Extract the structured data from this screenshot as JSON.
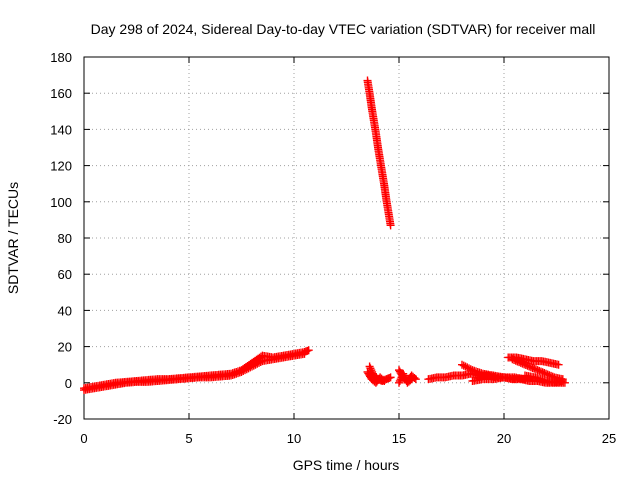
{
  "chart_data": {
    "type": "scatter",
    "title": "Day 298 of 2024, Sidereal Day-to-day VTEC variation (SDTVAR) for receiver mall",
    "xlabel": "GPS time / hours",
    "ylabel": "SDTVAR / TECUs",
    "xlim": [
      0,
      25
    ],
    "ylim": [
      -20,
      180
    ],
    "xticks": [
      0,
      5,
      10,
      15,
      20,
      25
    ],
    "xtick_labels": [
      "0",
      "5",
      "10",
      "15",
      "20",
      "25"
    ],
    "yticks": [
      -20,
      0,
      20,
      40,
      60,
      80,
      100,
      120,
      140,
      160,
      180
    ],
    "ytick_labels": [
      "-20",
      "0",
      "20",
      "40",
      "60",
      "80",
      "100",
      "120",
      "140",
      "160",
      "180"
    ],
    "grid": true,
    "marker": "+",
    "color": "#ff0000",
    "segments": [
      {
        "x": [
          0.0,
          0.5,
          1.0,
          1.5,
          2.0,
          2.5,
          3.0,
          3.5,
          4.0,
          4.5,
          5.0,
          5.5,
          6.0,
          6.5,
          7.0,
          7.5,
          8.0,
          8.5,
          9.0,
          9.5,
          10.0,
          10.5,
          10.7
        ],
        "y": [
          -3,
          -2,
          -1,
          0,
          0.5,
          1,
          1.5,
          2,
          2,
          2.5,
          3,
          3.5,
          4,
          4.5,
          5,
          7,
          11,
          15,
          14,
          15,
          16,
          17,
          18
        ]
      },
      {
        "x": [
          0.0,
          0.5,
          1.0,
          1.5,
          2.0,
          2.5,
          3.0,
          3.5,
          4.0,
          4.5,
          5.0,
          5.5,
          6.0,
          6.5,
          7.0,
          7.5,
          8.0,
          8.5,
          9.0,
          9.5,
          10.0,
          10.5
        ],
        "y": [
          -4,
          -3,
          -2,
          -1,
          0,
          0.5,
          0.5,
          1,
          1.5,
          2,
          2.5,
          3,
          3,
          3.5,
          4,
          6,
          9,
          12,
          13,
          14,
          15,
          16
        ]
      },
      {
        "x": [
          13.5,
          13.6,
          13.7,
          13.8,
          13.9,
          14.0,
          14.1,
          14.2,
          14.3,
          14.4,
          14.5,
          14.6
        ],
        "y": [
          167,
          160,
          152,
          145,
          138,
          130,
          123,
          116,
          109,
          101,
          94,
          87
        ]
      },
      {
        "x": [
          13.6,
          13.8,
          14.0,
          14.2,
          14.4,
          14.6
        ],
        "y": [
          9,
          4,
          2,
          1,
          2,
          3
        ]
      },
      {
        "x": [
          13.5,
          13.7,
          13.9,
          14.1,
          14.3
        ],
        "y": [
          6,
          2,
          0,
          3,
          1
        ]
      },
      {
        "x": [
          15.0,
          15.2,
          15.4,
          15.6,
          15.8
        ],
        "y": [
          7,
          3,
          1,
          4,
          2
        ]
      },
      {
        "x": [
          15.0,
          15.2,
          15.4,
          15.6
        ],
        "y": [
          0,
          5,
          0,
          2
        ]
      },
      {
        "x": [
          16.4,
          16.8,
          17.2,
          17.6,
          18.0,
          18.4,
          18.8,
          19.2,
          19.6,
          20.0,
          20.4,
          20.8,
          21.2,
          21.6,
          22.0,
          22.4,
          22.8
        ],
        "y": [
          2,
          3,
          3,
          4,
          4,
          5,
          4,
          4,
          3,
          3,
          2,
          2,
          1,
          1,
          0,
          0,
          1
        ]
      },
      {
        "x": [
          18.0,
          18.5,
          19.0,
          19.5,
          20.0,
          20.5,
          21.0
        ],
        "y": [
          10,
          7,
          5,
          4,
          3,
          3,
          2
        ]
      },
      {
        "x": [
          18.5,
          19.0,
          19.5,
          20.0,
          20.5
        ],
        "y": [
          1,
          2,
          2,
          3,
          2
        ]
      },
      {
        "x": [
          20.2,
          20.6,
          21.0,
          21.4,
          21.8,
          22.2,
          22.6
        ],
        "y": [
          14,
          14,
          13,
          12,
          12,
          11,
          10
        ]
      },
      {
        "x": [
          20.4,
          20.8,
          21.2,
          21.6,
          22.0,
          22.4,
          22.8
        ],
        "y": [
          13,
          11,
          9,
          7,
          5,
          3,
          2
        ]
      },
      {
        "x": [
          21.0,
          21.5,
          22.0,
          22.5,
          22.9
        ],
        "y": [
          4,
          3,
          1,
          0,
          0
        ]
      }
    ]
  }
}
